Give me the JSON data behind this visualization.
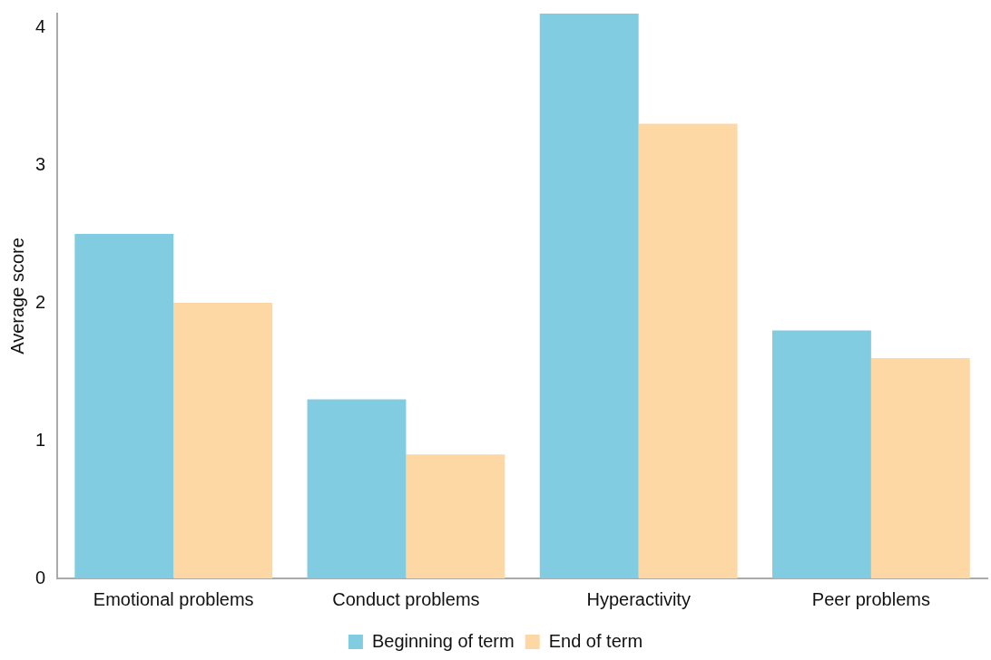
{
  "chart_data": {
    "type": "bar",
    "ylabel": "Average score",
    "categories": [
      "Emotional problems",
      "Conduct problems",
      "Hyperactivity",
      "Peer problems"
    ],
    "series": [
      {
        "name": "Beginning of term",
        "color": "#82cce2",
        "values": [
          2.5,
          1.3,
          4.1,
          1.8
        ]
      },
      {
        "name": "End of term",
        "color": "#fdd7a4",
        "values": [
          2.0,
          0.9,
          3.3,
          1.6
        ]
      }
    ],
    "ylim": [
      0,
      4.1
    ],
    "yticks": [
      0,
      1,
      2,
      3,
      4
    ],
    "grid": false,
    "legend": "bottom"
  }
}
